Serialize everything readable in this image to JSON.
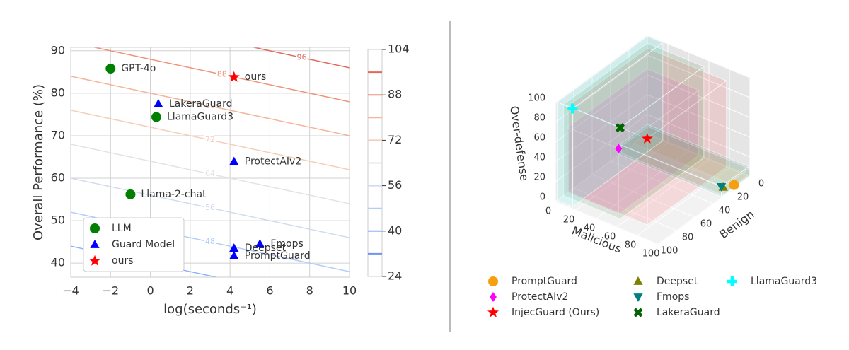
{
  "chart_data": [
    {
      "type": "scatter",
      "xlabel": "log(seconds⁻¹)",
      "ylabel": "Overall Performance (%)",
      "xlim": [
        -4,
        10
      ],
      "ylim": [
        36.7,
        90.8
      ],
      "xticks": [
        {
          "value": -4,
          "label": "−4"
        },
        {
          "value": -2,
          "label": "−2"
        },
        0,
        2,
        4,
        6,
        8,
        10
      ],
      "yticks": [
        40,
        50,
        60,
        70,
        80,
        90
      ],
      "grid": true,
      "legend": "lower left",
      "series": [
        {
          "name": "LLM",
          "color": "#008000",
          "marker": "circle",
          "x": [
            -2.0,
            -1.0,
            0.3
          ],
          "y": [
            85.8,
            56.2,
            74.4
          ],
          "labels": [
            "GPT-4o",
            "Llama-2-chat",
            "LlamaGuard3"
          ]
        },
        {
          "name": "Guard Model",
          "color": "#0000ff",
          "marker": "triangle",
          "x": [
            0.4,
            4.2,
            4.2,
            4.2,
            5.5
          ],
          "y": [
            77.5,
            63.9,
            43.5,
            41.7,
            44.5
          ],
          "labels": [
            "LakeraGuard",
            "ProtectAIv2",
            "Deepset",
            "PromptGuard",
            "Fmops"
          ]
        },
        {
          "name": "ours",
          "color": "#ff0000",
          "marker": "star",
          "x": [
            4.2
          ],
          "y": [
            83.8
          ],
          "labels": [
            "ours"
          ]
        }
      ],
      "contours": [
        {
          "level": 32,
          "color": "#6f92f3"
        },
        {
          "level": 40,
          "color": "#8fb1fe"
        },
        {
          "level": 48,
          "color": "#b3cdfb"
        },
        {
          "level": 56,
          "color": "#d0dbee"
        },
        {
          "level": 64,
          "color": "#e6e2e0"
        },
        {
          "level": 72,
          "color": "#f5cdb9"
        },
        {
          "level": 80,
          "color": "#f6b49a"
        },
        {
          "level": 88,
          "color": "#ee9279"
        },
        {
          "level": 96,
          "color": "#de6a5b"
        }
      ],
      "colorbar": {
        "lim": [
          24,
          104
        ],
        "ticks": [
          24,
          40,
          56,
          72,
          88,
          104
        ]
      }
    },
    {
      "type": "scatter3d",
      "xlabel": "Malicious",
      "ylabel": "Benign",
      "zlabel": "Over-defense",
      "xlim": [
        0,
        100
      ],
      "ylim": [
        0,
        100
      ],
      "zlim": [
        0,
        100
      ],
      "xticks": [
        0,
        20,
        40,
        60,
        80,
        100
      ],
      "yticks": [
        0,
        20,
        40,
        60,
        80,
        100
      ],
      "zticks": [
        0,
        20,
        40,
        60,
        80,
        100
      ],
      "legend": "lower center",
      "series": [
        {
          "name": "PromptGuard",
          "color": "#f5a00f",
          "marker": "circle",
          "x": [
            98
          ],
          "y": [
            15
          ],
          "z": [
            1
          ]
        },
        {
          "name": "ProtectAIv2",
          "color": "#ff00ff",
          "marker": "diamond",
          "x": [
            50
          ],
          "y": [
            87
          ],
          "z": [
            66
          ]
        },
        {
          "name": "InjecGuard (Ours)",
          "color": "#ff0000",
          "marker": "star",
          "x": [
            77
          ],
          "y": [
            86
          ],
          "z": [
            87
          ]
        },
        {
          "name": "Deepset",
          "color": "#808000",
          "marker": "triangle",
          "x": [
            99
          ],
          "y": [
            28
          ],
          "z": [
            8
          ]
        },
        {
          "name": "Fmops",
          "color": "#008080",
          "marker": "triangle-down",
          "x": [
            99
          ],
          "y": [
            30
          ],
          "z": [
            10
          ]
        },
        {
          "name": "LakeraGuard",
          "color": "#006400",
          "marker": "x",
          "x": [
            55
          ],
          "y": [
            91
          ],
          "z": [
            92
          ]
        },
        {
          "name": "LlamaGuard3",
          "color": "#00ffff",
          "marker": "plus",
          "x": [
            15
          ],
          "y": [
            98
          ],
          "z": [
            99
          ]
        }
      ]
    }
  ]
}
